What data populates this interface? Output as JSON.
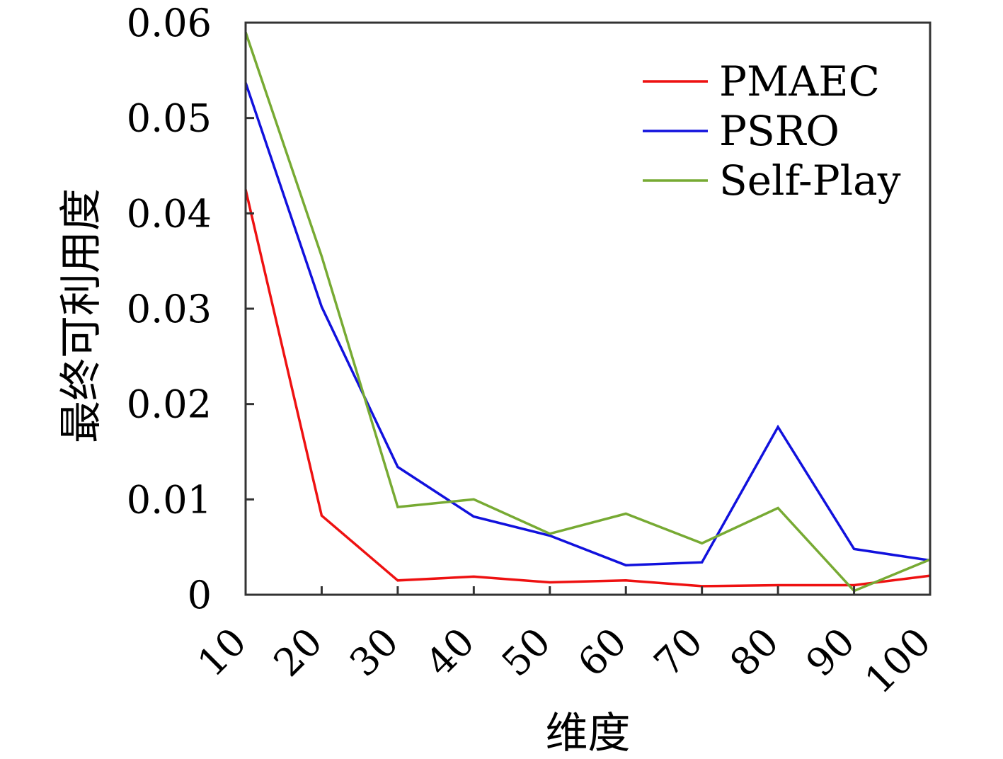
{
  "chart_data": {
    "type": "line",
    "x": [
      10,
      20,
      30,
      40,
      50,
      60,
      70,
      80,
      90,
      100
    ],
    "xticks": [
      "10",
      "20",
      "30",
      "40",
      "50",
      "60",
      "70",
      "80",
      "90",
      "100"
    ],
    "yticks": [
      "0",
      "0.01",
      "0.02",
      "0.03",
      "0.04",
      "0.05",
      "0.06"
    ],
    "ytick_values": [
      0,
      0.01,
      0.02,
      0.03,
      0.04,
      0.05,
      0.06
    ],
    "xlim": [
      10,
      100
    ],
    "ylim": [
      0,
      0.06
    ],
    "xlabel": "维度",
    "ylabel": "最终可利用度",
    "legend_position": "top-right",
    "grid": false,
    "series": [
      {
        "name": "PMAEC",
        "color": "#ee1111",
        "values": [
          0.0425,
          0.0083,
          0.0015,
          0.0019,
          0.0013,
          0.0015,
          0.0009,
          0.001,
          0.001,
          0.002
        ]
      },
      {
        "name": "PSRO",
        "color": "#1111dd",
        "values": [
          0.0537,
          0.0302,
          0.0134,
          0.0082,
          0.0062,
          0.0031,
          0.0034,
          0.0176,
          0.0048,
          0.0036
        ]
      },
      {
        "name": "Self-Play",
        "color": "#77aa33",
        "values": [
          0.059,
          0.0355,
          0.0092,
          0.01,
          0.0064,
          0.0085,
          0.0054,
          0.0091,
          0.0004,
          0.0037
        ]
      }
    ]
  }
}
